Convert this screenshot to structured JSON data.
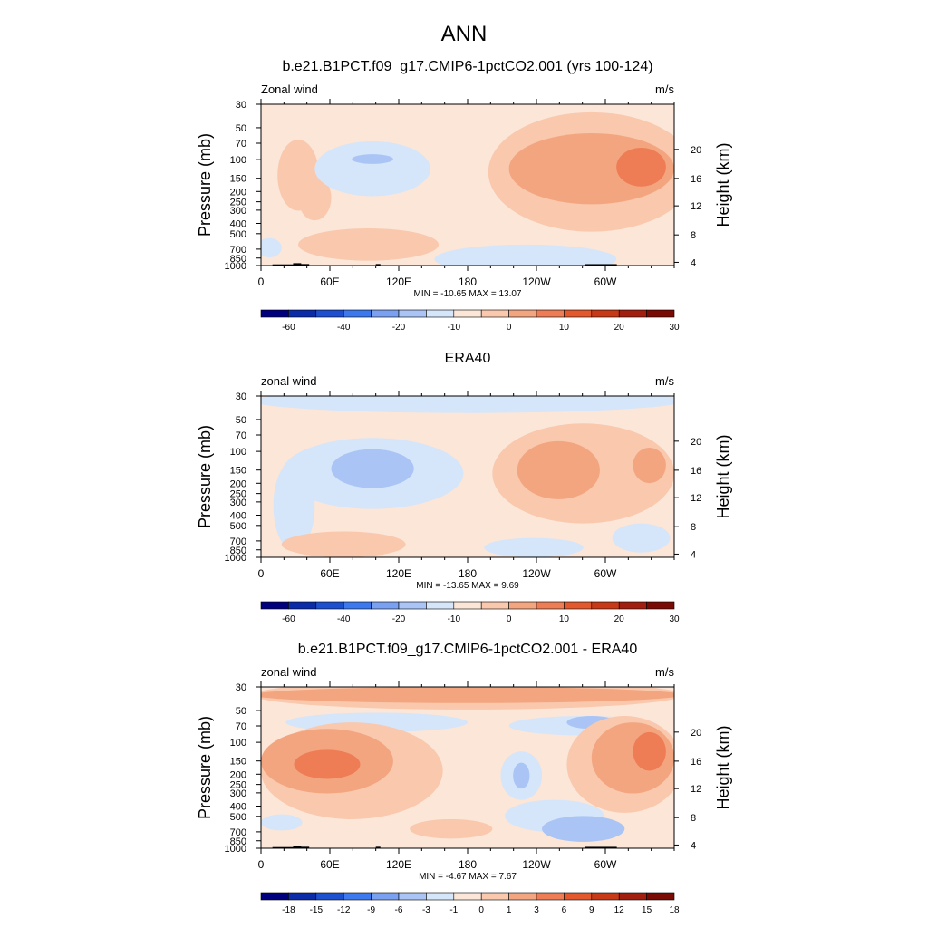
{
  "main_title": "ANN",
  "panels": [
    {
      "title": "b.e21.B1PCT.f09_g17.CMIP6-1pctCO2.001 (yrs 100-124)",
      "left_label": "Zonal wind",
      "right_label": "m/s",
      "stats": "MIN = -10.65  MAX =  13.07",
      "colorbar_labels": [
        "-60",
        "-40",
        "-20",
        "-10",
        "0",
        "10",
        "20",
        "30"
      ],
      "show_topography": true
    },
    {
      "title": "ERA40",
      "left_label": "zonal wind",
      "right_label": "m/s",
      "stats": "MIN = -13.65  MAX =   9.69",
      "colorbar_labels": [
        "-60",
        "-40",
        "-20",
        "-10",
        "0",
        "10",
        "20",
        "30"
      ],
      "show_topography": false
    },
    {
      "title": "b.e21.B1PCT.f09_g17.CMIP6-1pctCO2.001 - ERA40",
      "left_label": "zonal wind",
      "right_label": "m/s",
      "stats": "MIN =  -4.67  MAX =   7.67",
      "colorbar_labels": [
        "-18",
        "-15",
        "-12",
        "-9",
        "-6",
        "-3",
        "-1",
        "0",
        "1",
        "3",
        "6",
        "9",
        "12",
        "15",
        "18"
      ],
      "show_topography": true
    }
  ],
  "axes": {
    "ylabel_left": "Pressure (mb)",
    "ylabel_right": "Height (km)",
    "pressure_ticks": [
      "30",
      "50",
      "70",
      "100",
      "150",
      "200",
      "250",
      "300",
      "400",
      "500",
      "700",
      "850",
      "1000"
    ],
    "height_ticks": [
      "20",
      "16",
      "12",
      "8",
      "4"
    ],
    "lon_ticks": [
      "0",
      "60E",
      "120E",
      "180",
      "120W",
      "60W"
    ]
  },
  "colors": {
    "colorbar": [
      "#00007f",
      "#0a2ca8",
      "#1d4fd1",
      "#3c78ee",
      "#7aa0f2",
      "#a9c4f5",
      "#d5e5fa",
      "#fbe6d8",
      "#f9c8ad",
      "#f3a580",
      "#ee7d55",
      "#e4582e",
      "#c83a17",
      "#a21e0e",
      "#7a0a04"
    ],
    "zero_fill": "#fbe6d8",
    "topography": "#000000"
  },
  "chart_data": [
    {
      "type": "heatmap",
      "title": "b.e21.B1PCT.f09_g17.CMIP6-1pctCO2.001 (yrs 100-124)",
      "variable": "Zonal wind",
      "units": "m/s",
      "x_axis": "longitude",
      "y_axis": "pressure (mb)",
      "y_scale": "log",
      "xlim": [
        0,
        360
      ],
      "ylim_pressure": [
        1000,
        30
      ],
      "min": -10.65,
      "max": 13.07,
      "contour_levels": [
        -60,
        -50,
        -40,
        -30,
        -20,
        -15,
        -10,
        -5,
        0,
        5,
        10,
        15,
        20,
        25,
        30
      ],
      "features": [
        {
          "sign": "positive",
          "lon_center": 315,
          "pressure_center": 120,
          "max_approx": 13.07
        },
        {
          "sign": "negative",
          "lon_center": 115,
          "pressure_center": 100,
          "min_approx": -10.65
        }
      ]
    },
    {
      "type": "heatmap",
      "title": "ERA40",
      "variable": "zonal wind",
      "units": "m/s",
      "x_axis": "longitude",
      "y_axis": "pressure (mb)",
      "y_scale": "log",
      "xlim": [
        0,
        360
      ],
      "ylim_pressure": [
        1000,
        30
      ],
      "min": -13.65,
      "max": 9.69,
      "contour_levels": [
        -60,
        -50,
        -40,
        -30,
        -20,
        -15,
        -10,
        -5,
        0,
        5,
        10,
        15,
        20,
        25,
        30
      ]
    },
    {
      "type": "heatmap",
      "title": "b.e21.B1PCT.f09_g17.CMIP6-1pctCO2.001 - ERA40",
      "variable": "zonal wind",
      "units": "m/s",
      "x_axis": "longitude",
      "y_axis": "pressure (mb)",
      "y_scale": "log",
      "xlim": [
        0,
        360
      ],
      "ylim_pressure": [
        1000,
        30
      ],
      "min": -4.67,
      "max": 7.67,
      "contour_levels": [
        -18,
        -15,
        -12,
        -9,
        -6,
        -3,
        -1,
        0,
        1,
        3,
        6,
        9,
        12,
        15,
        18
      ]
    }
  ]
}
